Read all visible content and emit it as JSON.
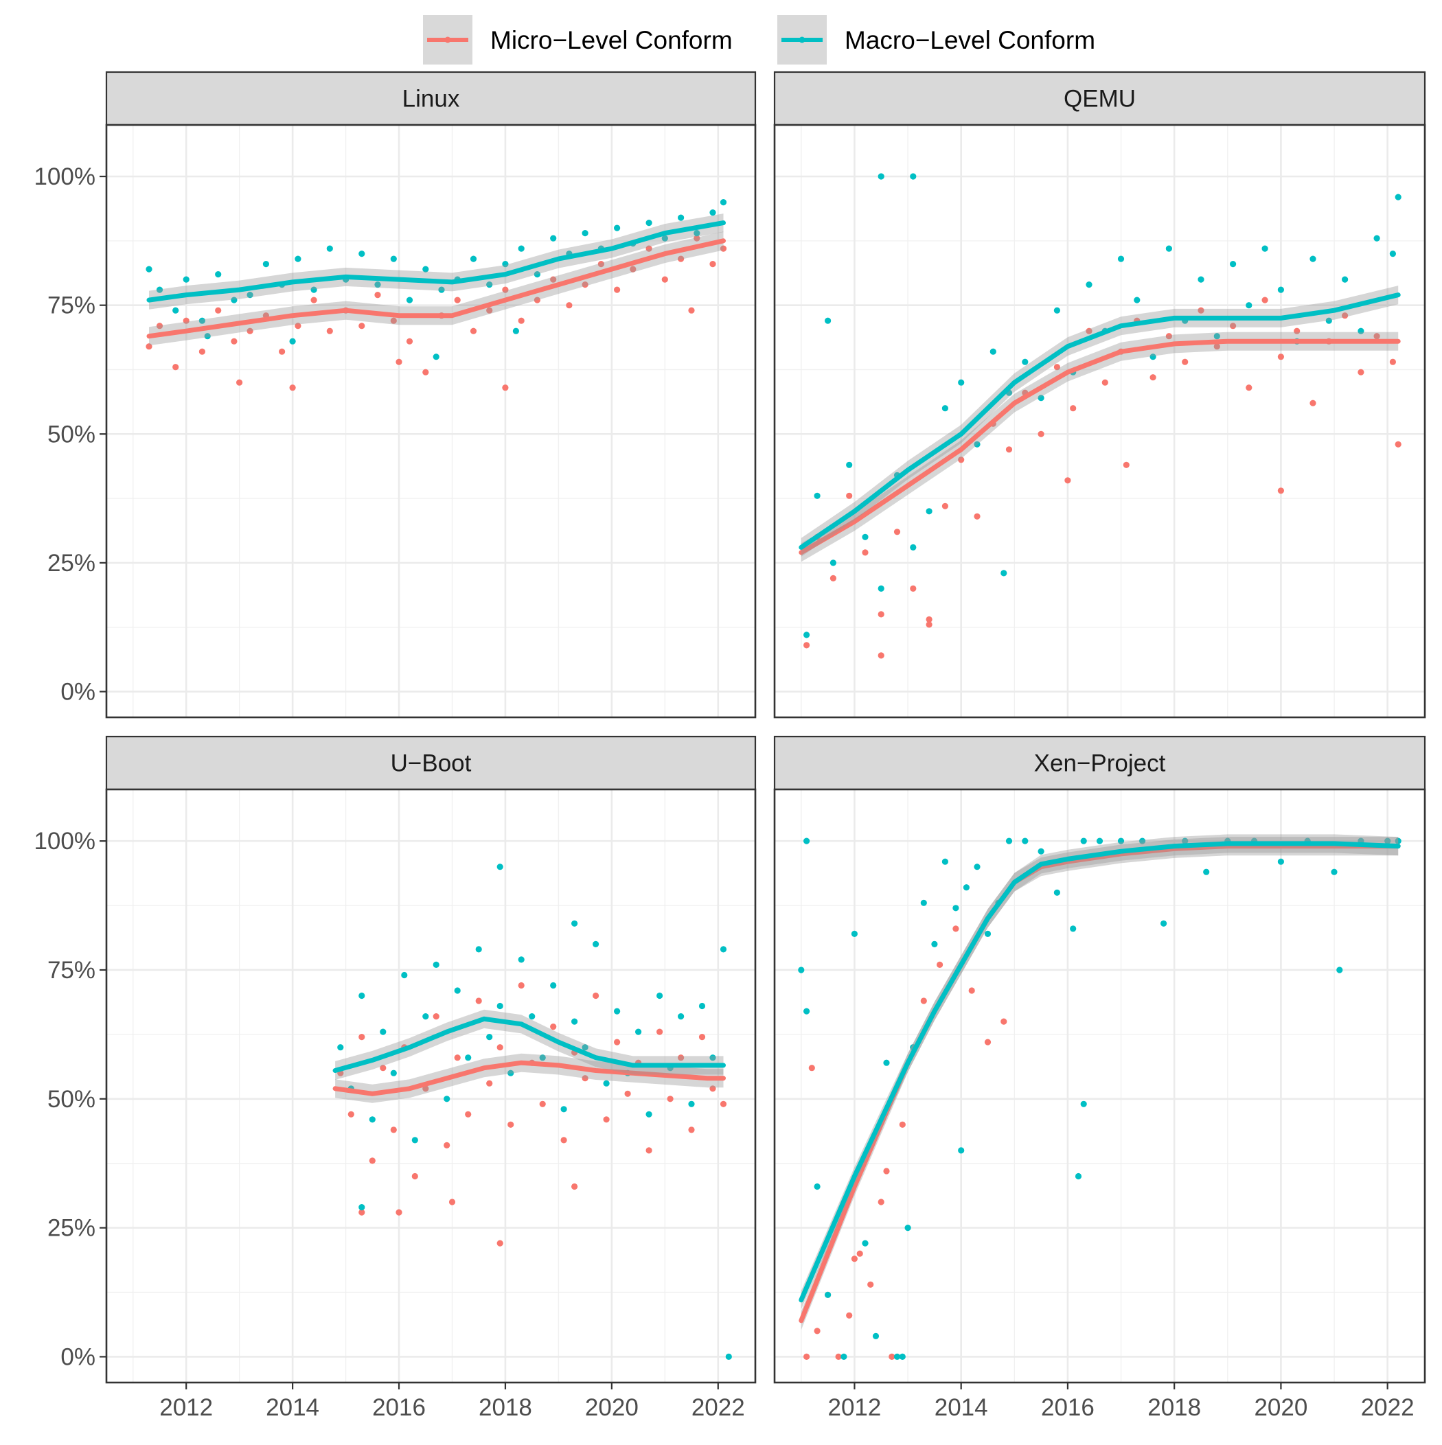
{
  "legend": {
    "items": [
      {
        "label": "Micro−Level Conform",
        "color": "#F8766D"
      },
      {
        "label": "Macro−Level Conform",
        "color": "#00BFC4"
      }
    ]
  },
  "axes": {
    "x_ticks": [
      "2012",
      "2014",
      "2016",
      "2018",
      "2020",
      "2022"
    ],
    "y_ticks": [
      "0%",
      "25%",
      "50%",
      "75%",
      "100%"
    ]
  },
  "chart_data": {
    "type": "scatter",
    "x_range": [
      2010.5,
      2022.7
    ],
    "y_range": [
      -0.05,
      1.1
    ],
    "grid": true,
    "legend_position": "top",
    "smoothing": "loess with confidence band",
    "series_colors": {
      "micro": "#F8766D",
      "macro": "#00BFC4"
    },
    "panels": [
      {
        "name": "Linux",
        "micro_trend": {
          "x": [
            2011.3,
            2012,
            2013,
            2014,
            2015,
            2016,
            2017,
            2018,
            2019,
            2020,
            2021,
            2022.1
          ],
          "y": [
            0.69,
            0.7,
            0.715,
            0.73,
            0.74,
            0.73,
            0.73,
            0.76,
            0.79,
            0.82,
            0.85,
            0.875
          ]
        },
        "macro_trend": {
          "x": [
            2011.3,
            2012,
            2013,
            2014,
            2015,
            2016,
            2017,
            2018,
            2019,
            2020,
            2021,
            2022.1
          ],
          "y": [
            0.76,
            0.77,
            0.78,
            0.795,
            0.805,
            0.8,
            0.795,
            0.81,
            0.84,
            0.86,
            0.89,
            0.91
          ]
        },
        "micro_points": {
          "x": [
            2011.3,
            2011.5,
            2011.8,
            2012.0,
            2012.3,
            2012.6,
            2012.9,
            2013.2,
            2013.5,
            2013.8,
            2014.1,
            2014.4,
            2014.7,
            2015.0,
            2015.3,
            2015.6,
            2015.9,
            2016.2,
            2016.5,
            2016.8,
            2017.1,
            2017.4,
            2017.7,
            2018.0,
            2018.3,
            2018.6,
            2018.9,
            2019.2,
            2019.5,
            2019.8,
            2020.1,
            2020.4,
            2020.7,
            2021.0,
            2021.3,
            2021.6,
            2021.9,
            2022.1,
            2013.0,
            2014.0,
            2016.0,
            2018.0,
            2021.5
          ],
          "y": [
            0.67,
            0.71,
            0.63,
            0.72,
            0.66,
            0.74,
            0.68,
            0.7,
            0.73,
            0.66,
            0.71,
            0.76,
            0.7,
            0.74,
            0.71,
            0.77,
            0.72,
            0.68,
            0.62,
            0.73,
            0.76,
            0.7,
            0.74,
            0.78,
            0.72,
            0.76,
            0.8,
            0.75,
            0.79,
            0.83,
            0.78,
            0.82,
            0.86,
            0.8,
            0.84,
            0.88,
            0.83,
            0.86,
            0.6,
            0.59,
            0.64,
            0.59,
            0.74
          ]
        },
        "macro_points": {
          "x": [
            2011.3,
            2011.5,
            2011.8,
            2012.0,
            2012.3,
            2012.6,
            2012.9,
            2013.2,
            2013.5,
            2013.8,
            2014.1,
            2014.4,
            2014.7,
            2015.0,
            2015.3,
            2015.6,
            2015.9,
            2016.2,
            2016.5,
            2016.8,
            2017.1,
            2017.4,
            2017.7,
            2018.0,
            2018.3,
            2018.6,
            2018.9,
            2019.2,
            2019.5,
            2019.8,
            2020.1,
            2020.4,
            2020.7,
            2021.0,
            2021.3,
            2021.6,
            2021.9,
            2022.1,
            2012.4,
            2014.0,
            2016.7,
            2018.2
          ],
          "y": [
            0.82,
            0.78,
            0.74,
            0.8,
            0.72,
            0.81,
            0.76,
            0.77,
            0.83,
            0.79,
            0.84,
            0.78,
            0.86,
            0.8,
            0.85,
            0.79,
            0.84,
            0.76,
            0.82,
            0.78,
            0.8,
            0.84,
            0.79,
            0.83,
            0.86,
            0.81,
            0.88,
            0.85,
            0.89,
            0.86,
            0.9,
            0.87,
            0.91,
            0.88,
            0.92,
            0.89,
            0.93,
            0.95,
            0.69,
            0.68,
            0.65,
            0.7
          ]
        }
      },
      {
        "name": "QEMU",
        "micro_trend": {
          "x": [
            2011.0,
            2012,
            2013,
            2014,
            2015,
            2016,
            2017,
            2018,
            2019,
            2020,
            2021,
            2022.2
          ],
          "y": [
            0.27,
            0.33,
            0.4,
            0.47,
            0.56,
            0.62,
            0.66,
            0.675,
            0.68,
            0.68,
            0.68,
            0.68
          ]
        },
        "macro_trend": {
          "x": [
            2011.0,
            2012,
            2013,
            2014,
            2015,
            2016,
            2017,
            2018,
            2019,
            2020,
            2021,
            2022.2
          ],
          "y": [
            0.28,
            0.35,
            0.43,
            0.5,
            0.6,
            0.67,
            0.71,
            0.725,
            0.725,
            0.725,
            0.74,
            0.77
          ]
        },
        "micro_points": {
          "x": [
            2011.1,
            2011.3,
            2011.6,
            2011.9,
            2012.2,
            2012.5,
            2012.8,
            2013.1,
            2013.4,
            2013.7,
            2014.0,
            2014.3,
            2014.6,
            2014.9,
            2015.2,
            2015.5,
            2015.8,
            2016.1,
            2016.4,
            2016.7,
            2017.0,
            2017.3,
            2017.6,
            2017.9,
            2018.2,
            2018.5,
            2018.8,
            2019.1,
            2019.4,
            2019.7,
            2020.0,
            2020.3,
            2020.6,
            2020.9,
            2021.2,
            2021.5,
            2021.8,
            2022.1,
            2012.5,
            2013.4,
            2016.0,
            2017.1,
            2020.0,
            2022.2
          ],
          "y": [
            0.09,
            0.3,
            0.22,
            0.38,
            0.27,
            0.15,
            0.31,
            0.2,
            0.13,
            0.36,
            0.45,
            0.34,
            0.52,
            0.47,
            0.58,
            0.5,
            0.63,
            0.55,
            0.7,
            0.6,
            0.66,
            0.72,
            0.61,
            0.69,
            0.64,
            0.74,
            0.67,
            0.71,
            0.59,
            0.76,
            0.65,
            0.7,
            0.56,
            0.68,
            0.73,
            0.62,
            0.69,
            0.64,
            0.07,
            0.14,
            0.41,
            0.44,
            0.39,
            0.48
          ]
        },
        "macro_points": {
          "x": [
            2011.1,
            2011.3,
            2011.6,
            2011.9,
            2012.2,
            2012.5,
            2012.8,
            2013.1,
            2013.4,
            2013.7,
            2014.0,
            2014.3,
            2014.6,
            2014.9,
            2015.2,
            2015.5,
            2015.8,
            2016.1,
            2016.4,
            2016.7,
            2017.0,
            2017.3,
            2017.6,
            2017.9,
            2018.2,
            2018.5,
            2018.8,
            2019.1,
            2019.4,
            2019.7,
            2020.0,
            2020.3,
            2020.6,
            2020.9,
            2021.2,
            2021.5,
            2021.8,
            2022.1,
            2012.5,
            2013.1,
            2011.5,
            2014.8,
            2022.2
          ],
          "y": [
            0.11,
            0.38,
            0.25,
            0.44,
            0.3,
            0.2,
            0.42,
            0.28,
            0.35,
            0.55,
            0.6,
            0.48,
            0.66,
            0.58,
            0.64,
            0.57,
            0.74,
            0.62,
            0.79,
            0.7,
            0.84,
            0.76,
            0.65,
            0.86,
            0.72,
            0.8,
            0.69,
            0.83,
            0.75,
            0.86,
            0.78,
            0.68,
            0.84,
            0.72,
            0.8,
            0.7,
            0.88,
            0.85,
            1.0,
            1.0,
            0.72,
            0.23,
            0.96
          ]
        }
      },
      {
        "name": "U−Boot",
        "micro_trend": {
          "x": [
            2014.8,
            2015.5,
            2016.2,
            2016.9,
            2017.6,
            2018.3,
            2019.0,
            2019.7,
            2020.4,
            2021.1,
            2021.8,
            2022.1
          ],
          "y": [
            0.52,
            0.51,
            0.52,
            0.54,
            0.56,
            0.57,
            0.565,
            0.555,
            0.55,
            0.545,
            0.54,
            0.54
          ]
        },
        "macro_trend": {
          "x": [
            2014.8,
            2015.5,
            2016.2,
            2016.9,
            2017.6,
            2018.3,
            2019.0,
            2019.7,
            2020.4,
            2021.1,
            2021.8,
            2022.1
          ],
          "y": [
            0.555,
            0.575,
            0.6,
            0.63,
            0.655,
            0.645,
            0.61,
            0.58,
            0.565,
            0.565,
            0.565,
            0.565
          ]
        },
        "micro_points": {
          "x": [
            2014.9,
            2015.1,
            2015.3,
            2015.5,
            2015.7,
            2015.9,
            2016.1,
            2016.3,
            2016.5,
            2016.7,
            2016.9,
            2017.1,
            2017.3,
            2017.5,
            2017.7,
            2017.9,
            2018.1,
            2018.3,
            2018.5,
            2018.7,
            2018.9,
            2019.1,
            2019.3,
            2019.5,
            2019.7,
            2019.9,
            2020.1,
            2020.3,
            2020.5,
            2020.7,
            2020.9,
            2021.1,
            2021.3,
            2021.5,
            2021.7,
            2021.9,
            2022.1,
            2017.9,
            2015.3,
            2016.0,
            2017.0,
            2019.3
          ],
          "y": [
            0.55,
            0.47,
            0.62,
            0.38,
            0.56,
            0.44,
            0.6,
            0.35,
            0.52,
            0.66,
            0.41,
            0.58,
            0.47,
            0.69,
            0.53,
            0.6,
            0.45,
            0.72,
            0.57,
            0.49,
            0.64,
            0.42,
            0.59,
            0.54,
            0.7,
            0.46,
            0.61,
            0.51,
            0.57,
            0.4,
            0.63,
            0.5,
            0.58,
            0.44,
            0.62,
            0.52,
            0.49,
            0.22,
            0.28,
            0.28,
            0.3,
            0.33
          ]
        },
        "macro_points": {
          "x": [
            2014.9,
            2015.1,
            2015.3,
            2015.5,
            2015.7,
            2015.9,
            2016.1,
            2016.3,
            2016.5,
            2016.7,
            2016.9,
            2017.1,
            2017.3,
            2017.5,
            2017.7,
            2017.9,
            2018.1,
            2018.3,
            2018.5,
            2018.7,
            2018.9,
            2019.1,
            2019.3,
            2019.5,
            2019.7,
            2019.9,
            2020.1,
            2020.3,
            2020.5,
            2020.7,
            2020.9,
            2021.1,
            2021.3,
            2021.5,
            2021.7,
            2021.9,
            2022.1,
            2017.9,
            2019.3,
            2022.2,
            2015.3
          ],
          "y": [
            0.6,
            0.52,
            0.7,
            0.46,
            0.63,
            0.55,
            0.74,
            0.42,
            0.66,
            0.76,
            0.5,
            0.71,
            0.58,
            0.79,
            0.62,
            0.68,
            0.55,
            0.77,
            0.66,
            0.58,
            0.72,
            0.48,
            0.65,
            0.6,
            0.8,
            0.53,
            0.67,
            0.55,
            0.63,
            0.47,
            0.7,
            0.56,
            0.66,
            0.49,
            0.68,
            0.58,
            0.79,
            0.95,
            0.84,
            0.0,
            0.29
          ]
        }
      },
      {
        "name": "Xen−Project",
        "micro_trend": {
          "x": [
            2011.0,
            2011.5,
            2012.0,
            2012.5,
            2013.0,
            2013.5,
            2014.0,
            2014.5,
            2015.0,
            2015.5,
            2016.0,
            2017.0,
            2018.0,
            2019.0,
            2020.0,
            2021.0,
            2022.2
          ],
          "y": [
            0.07,
            0.2,
            0.33,
            0.45,
            0.57,
            0.67,
            0.76,
            0.85,
            0.92,
            0.95,
            0.96,
            0.975,
            0.985,
            0.99,
            0.99,
            0.99,
            0.99
          ]
        },
        "macro_trend": {
          "x": [
            2011.0,
            2011.5,
            2012.0,
            2012.5,
            2013.0,
            2013.5,
            2014.0,
            2014.5,
            2015.0,
            2015.5,
            2016.0,
            2017.0,
            2018.0,
            2019.0,
            2020.0,
            2021.0,
            2022.2
          ],
          "y": [
            0.11,
            0.23,
            0.35,
            0.46,
            0.57,
            0.67,
            0.76,
            0.85,
            0.92,
            0.955,
            0.965,
            0.98,
            0.99,
            0.995,
            0.995,
            0.995,
            0.99
          ]
        },
        "micro_points": {
          "x": [
            2011.1,
            2011.3,
            2011.5,
            2011.7,
            2011.9,
            2012.1,
            2012.3,
            2012.5,
            2012.7,
            2012.9,
            2013.1,
            2013.3,
            2013.6,
            2013.9,
            2014.2,
            2014.5,
            2014.8,
            2011.2,
            2012.0,
            2012.6
          ],
          "y": [
            0.0,
            0.05,
            0.12,
            0.0,
            0.08,
            0.2,
            0.14,
            0.3,
            0.0,
            0.45,
            0.6,
            0.69,
            0.76,
            0.83,
            0.71,
            0.61,
            0.65,
            0.56,
            0.19,
            0.36
          ]
        },
        "macro_points": {
          "x": [
            2011.0,
            2011.1,
            2011.3,
            2011.5,
            2011.8,
            2012.0,
            2012.2,
            2012.4,
            2012.6,
            2012.8,
            2013.0,
            2013.1,
            2013.3,
            2013.5,
            2013.7,
            2013.9,
            2014.1,
            2014.3,
            2014.5,
            2014.7,
            2014.9,
            2015.2,
            2015.5,
            2015.8,
            2016.1,
            2016.3,
            2016.6,
            2017.0,
            2017.4,
            2017.8,
            2018.2,
            2018.6,
            2019.0,
            2019.5,
            2020.0,
            2020.5,
            2021.0,
            2021.5,
            2022.0,
            2022.2,
            2011.1,
            2012.9,
            2014.0,
            2016.3,
            2016.2,
            2021.1
          ],
          "y": [
            0.75,
            1.0,
            0.33,
            0.12,
            0.0,
            0.82,
            0.22,
            0.04,
            0.57,
            0.0,
            0.25,
            0.6,
            0.88,
            0.8,
            0.96,
            0.87,
            0.91,
            0.95,
            0.82,
            0.88,
            1.0,
            1.0,
            0.98,
            0.9,
            0.83,
            1.0,
            1.0,
            1.0,
            1.0,
            0.84,
            1.0,
            0.94,
            1.0,
            1.0,
            0.96,
            1.0,
            0.94,
            1.0,
            1.0,
            1.0,
            0.67,
            0.0,
            0.4,
            0.49,
            0.35,
            0.75
          ]
        }
      }
    ]
  }
}
